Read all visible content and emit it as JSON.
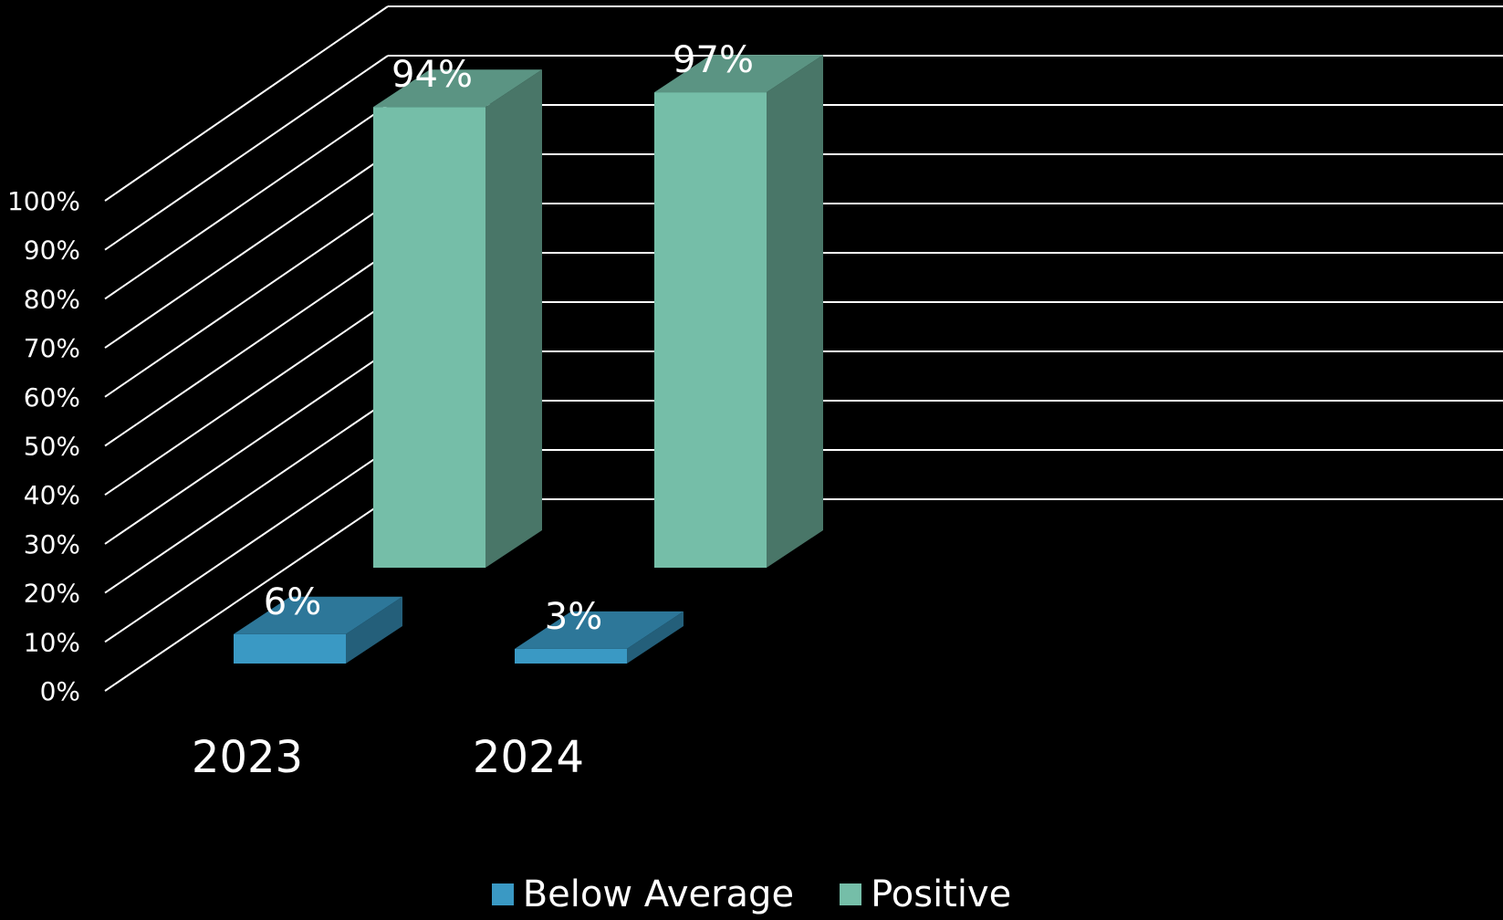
{
  "chart_data": {
    "type": "bar",
    "title": "",
    "xlabel": "",
    "ylabel": "",
    "categories": [
      "2023",
      "2024"
    ],
    "series": [
      {
        "name": "Below Average",
        "values": [
          6,
          3
        ],
        "labels": [
          "6%",
          "3%"
        ],
        "color": "#3a99c4"
      },
      {
        "name": "Positive",
        "values": [
          94,
          97
        ],
        "labels": [
          "94%",
          "97%"
        ],
        "color": "#75bea8"
      }
    ],
    "ylim": [
      0,
      100
    ],
    "y_ticks": [
      "0%",
      "10%",
      "20%",
      "30%",
      "40%",
      "50%",
      "60%",
      "70%",
      "80%",
      "90%",
      "100%"
    ],
    "grid": true,
    "legend_position": "bottom",
    "style": "3d-column"
  },
  "colors": {
    "background": "#000000",
    "gridline": "#ffffff",
    "text": "#ffffff"
  }
}
